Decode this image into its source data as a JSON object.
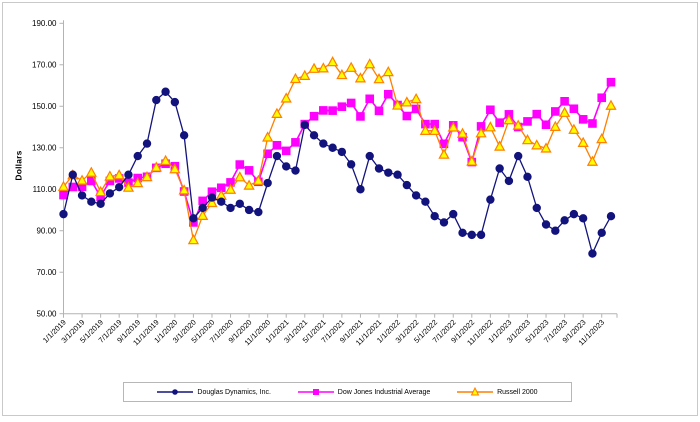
{
  "chart_data": {
    "type": "line",
    "title": "",
    "ylabel": "Dollars",
    "ylim": [
      50,
      190
    ],
    "yticks": [
      50,
      70,
      90,
      110,
      130,
      150,
      170,
      190
    ],
    "grid": false,
    "legend_position": "bottom",
    "x_tick_labels": [
      "1/1/2019",
      "3/1/2019",
      "5/1/2019",
      "7/1/2019",
      "9/1/2019",
      "11/1/2019",
      "1/1/2020",
      "3/1/2020",
      "5/1/2020",
      "7/1/2020",
      "9/1/2020",
      "11/1/2020",
      "1/1/2021",
      "3/1/2021",
      "5/1/2021",
      "7/1/2021",
      "9/1/2021",
      "11/1/2021",
      "1/1/2022",
      "3/1/2022",
      "5/1/2022",
      "7/1/2022",
      "9/1/2022",
      "11/1/2022",
      "1/1/2023",
      "3/1/2023",
      "5/1/2023",
      "7/1/2023",
      "9/1/2023",
      "11/1/2023"
    ],
    "series": [
      {
        "name": "Douglas Dynamics, Inc.",
        "marker": "circle",
        "color": "#13137d",
        "marker_fill": "#13137d",
        "values": [
          98,
          117,
          107,
          104,
          103,
          108,
          111,
          117,
          126,
          132,
          153,
          157,
          152,
          136,
          96,
          101,
          106,
          104,
          101,
          103,
          100,
          99,
          113,
          126,
          121,
          119,
          141,
          136,
          132,
          130,
          128,
          122,
          110,
          126,
          120,
          118,
          117,
          112,
          107,
          104,
          97,
          94,
          98,
          89,
          88,
          88,
          105,
          120,
          114,
          126,
          116,
          101,
          93,
          90,
          95,
          98,
          96,
          79,
          89,
          97
        ]
      },
      {
        "name": "Dow Jones Industrial Average",
        "marker": "square",
        "color": "#ff00ff",
        "marker_fill": "#ff00ff",
        "values": [
          107.2,
          111.1,
          111.2,
          114.0,
          106.4,
          114.0,
          115.2,
          113.2,
          115.4,
          116.0,
          120.3,
          122.3,
          121.1,
          108.9,
          94.0,
          104.4,
          108.8,
          110.7,
          113.3,
          121.9,
          119.1,
          113.6,
          127.1,
          131.2,
          128.5,
          132.6,
          141.4,
          145.2,
          148.0,
          147.9,
          149.8,
          151.6,
          145.1,
          153.6,
          147.8,
          155.8,
          150.6,
          145.3,
          148.7,
          141.4,
          141.4,
          131.9,
          140.8,
          135.1,
          123.1,
          140.3,
          148.3,
          142.1,
          146.1,
          140.0,
          142.7,
          146.2,
          141.1,
          147.5,
          152.4,
          148.8,
          143.7,
          141.7,
          154.1,
          161.6
        ]
      },
      {
        "name": "Russell 2000",
        "marker": "triangle",
        "color": "#ff7f00",
        "marker_fill": "#ffff00",
        "values": [
          111.2,
          116.8,
          114.2,
          118.0,
          108.7,
          116.2,
          116.8,
          110.8,
          113.0,
          115.9,
          120.5,
          123.7,
          119.7,
          109.5,
          85.5,
          97.2,
          103.4,
          106.9,
          109.8,
          115.8,
          111.8,
          114.1,
          135.0,
          146.4,
          153.8,
          163.2,
          164.7,
          168.1,
          168.3,
          171.3,
          165.1,
          168.6,
          163.5,
          170.3,
          163.1,
          166.5,
          150.4,
          151.9,
          153.5,
          138.2,
          138.2,
          126.7,
          139.8,
          136.8,
          123.4,
          137.0,
          139.9,
          130.6,
          143.3,
          140.7,
          133.7,
          131.2,
          129.7,
          140.1,
          146.9,
          138.7,
          132.4,
          123.3,
          134.2,
          150.3
        ]
      }
    ],
    "axis_color": "#b3b3b3",
    "tick_label_format": "0.00"
  }
}
